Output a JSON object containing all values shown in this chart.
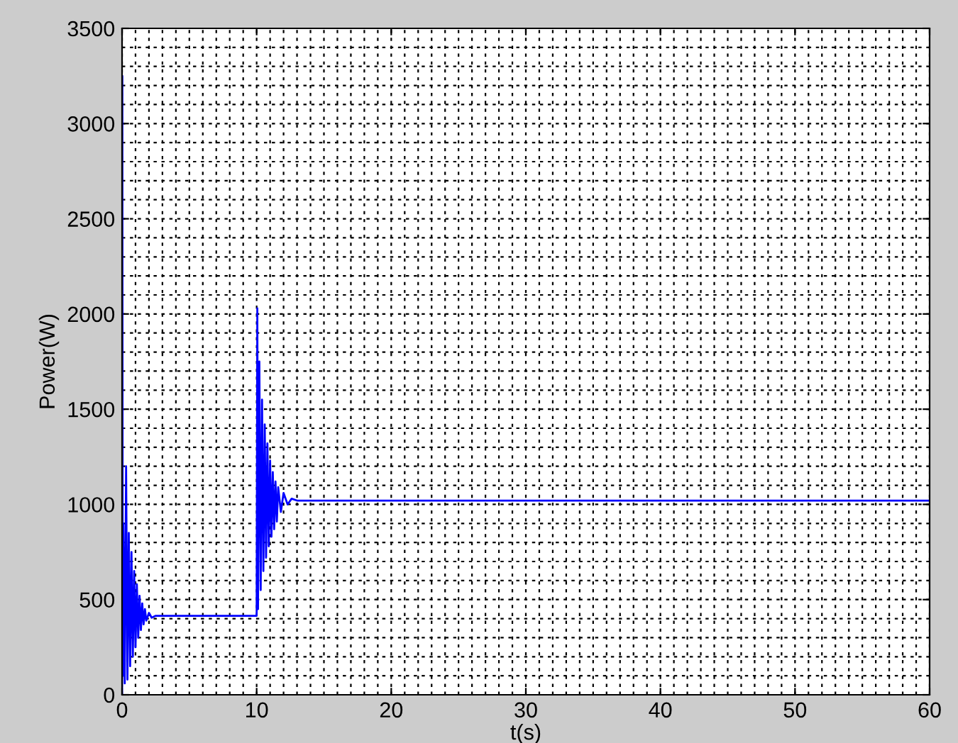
{
  "chart_data": {
    "type": "line",
    "xlabel": "t(s)",
    "ylabel": "Power(W)",
    "xlim": [
      0,
      60
    ],
    "xticks": [
      0,
      10,
      20,
      30,
      40,
      50,
      60
    ],
    "ylim": [
      0,
      3500
    ],
    "yticks": [
      0,
      500,
      1000,
      1500,
      2000,
      2500,
      3000,
      3500
    ],
    "grid": true,
    "line_style": "solid",
    "marker": "none",
    "series": [
      {
        "color": "#0000ff",
        "x": [
          0,
          0.02,
          0.05,
          0.1,
          0.2,
          0.3,
          0.4,
          0.5,
          0.6,
          0.7,
          0.8,
          0.9,
          1.0,
          1.1,
          1.2,
          1.3,
          1.4,
          1.5,
          1.6,
          1.7,
          1.8,
          2.0,
          2.2,
          2.5,
          10,
          10.05,
          10.1,
          10.2,
          10.3,
          10.4,
          10.5,
          10.6,
          10.7,
          10.8,
          10.9,
          11.0,
          11.1,
          11.2,
          11.3,
          11.4,
          11.5,
          11.6,
          11.8,
          12.0,
          12.3,
          12.6,
          13,
          60
        ],
        "values": [
          0,
          3250,
          100,
          900,
          60,
          1200,
          80,
          850,
          150,
          750,
          200,
          650,
          250,
          580,
          300,
          520,
          340,
          480,
          370,
          450,
          390,
          430,
          405,
          415,
          415,
          2030,
          450,
          1750,
          550,
          1550,
          650,
          1420,
          720,
          1320,
          780,
          1230,
          830,
          1170,
          870,
          1120,
          910,
          1090,
          960,
          1060,
          1000,
          1030,
          1020,
          1020
        ]
      }
    ]
  }
}
